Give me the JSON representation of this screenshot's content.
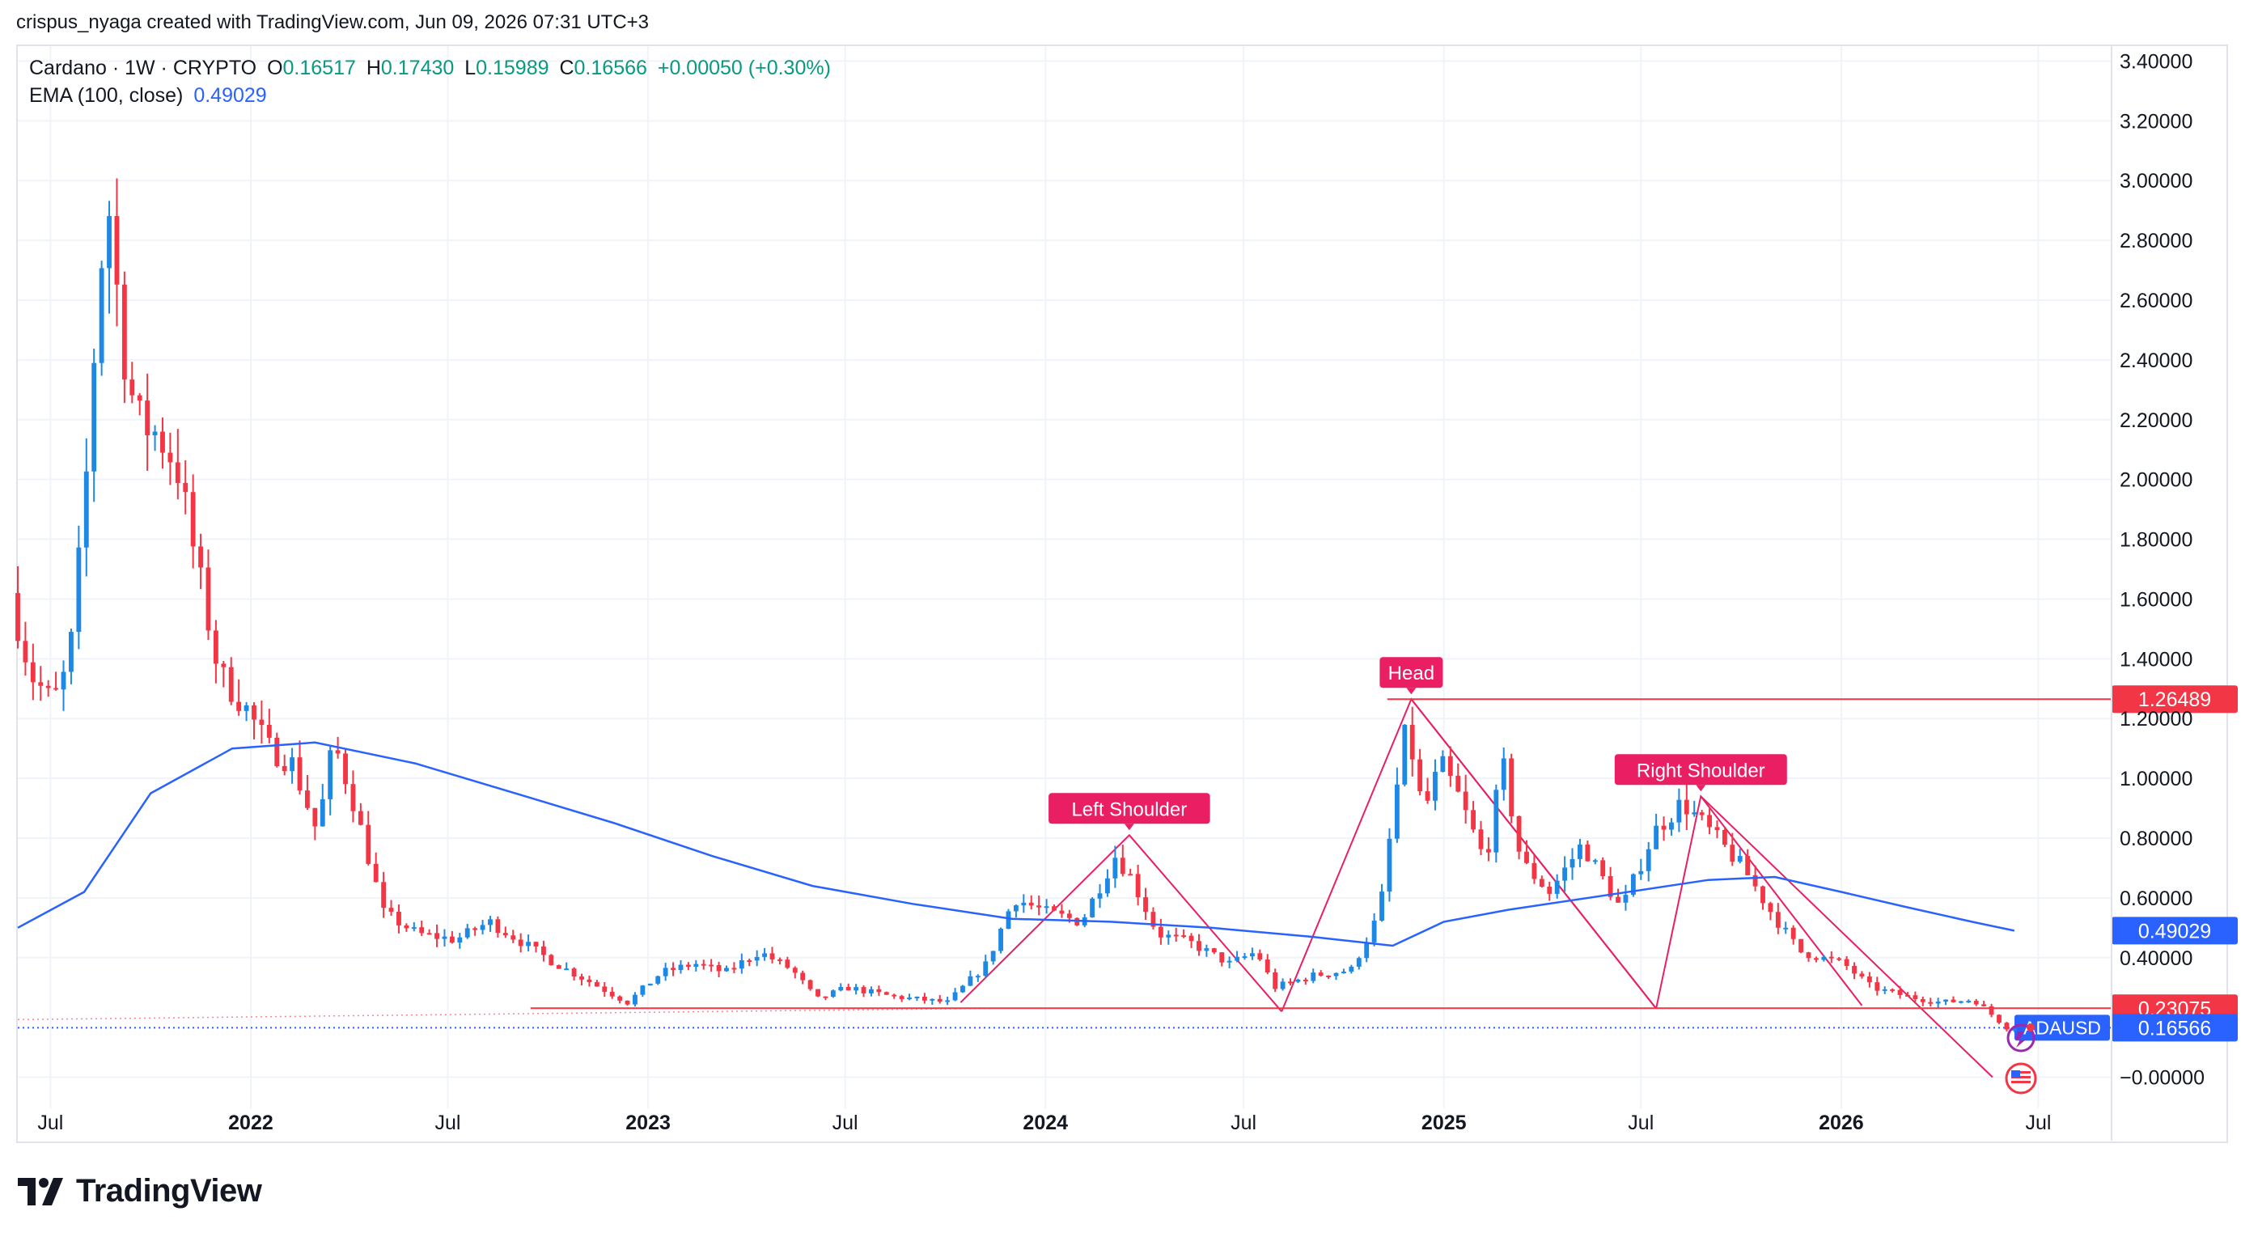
{
  "header": {
    "credit": "crispus_nyaga created with TradingView.com, Jun 09, 2026 07:31 UTC+3"
  },
  "legend": {
    "symbol": "Cardano · 1W · CRYPTO",
    "o_label": "O",
    "o_value": "0.16517",
    "h_label": "H",
    "h_value": "0.17430",
    "l_label": "L",
    "l_value": "0.15989",
    "c_label": "C",
    "c_value": "0.16566",
    "change": "+0.00050 (+0.30%)",
    "ema_label": "EMA (100, close)",
    "ema_value": "0.49029"
  },
  "colors": {
    "up": "#2962ff",
    "up_candle": "#1e88e5",
    "down": "#f23645",
    "ema": "#2962ff",
    "pattern": "#e91e63",
    "grid": "#f0f3fa",
    "legend_value": "#089981"
  },
  "brand": {
    "name": "TradingView",
    "icon": "tradingview-logo-icon"
  },
  "chart_data": {
    "type": "candlestick",
    "symbol": "ADAUSD",
    "ylim": [
      -0.05,
      3.45
    ],
    "y_ticks": [
      "3.40000",
      "3.20000",
      "3.00000",
      "2.80000",
      "2.60000",
      "2.40000",
      "2.20000",
      "2.00000",
      "1.80000",
      "1.60000",
      "1.40000",
      "1.20000",
      "1.00000",
      "0.80000",
      "0.60000",
      "0.40000",
      "−0.00000"
    ],
    "y_tick_values": [
      3.4,
      3.2,
      3.0,
      2.8,
      2.6,
      2.4,
      2.2,
      2.0,
      1.8,
      1.6,
      1.4,
      1.2,
      1.0,
      0.8,
      0.6,
      0.4,
      0.0
    ],
    "x_ticks": [
      {
        "label": "Jul",
        "date": "2021-07-01",
        "bold": false
      },
      {
        "label": "2022",
        "date": "2022-01-01",
        "bold": true
      },
      {
        "label": "Jul",
        "date": "2022-07-01",
        "bold": false
      },
      {
        "label": "2023",
        "date": "2023-01-01",
        "bold": true
      },
      {
        "label": "Jul",
        "date": "2023-07-01",
        "bold": false
      },
      {
        "label": "2024",
        "date": "2024-01-01",
        "bold": true
      },
      {
        "label": "Jul",
        "date": "2024-07-01",
        "bold": false
      },
      {
        "label": "2025",
        "date": "2025-01-01",
        "bold": true
      },
      {
        "label": "Jul",
        "date": "2025-07-01",
        "bold": false
      },
      {
        "label": "2026",
        "date": "2026-01-01",
        "bold": true
      },
      {
        "label": "Jul",
        "date": "2026-07-01",
        "bold": false
      }
    ],
    "x_range": [
      "2021-06-01",
      "2026-07-20"
    ],
    "price_path": [
      [
        "2021-06-01",
        1.62
      ],
      [
        "2021-06-20",
        1.35
      ],
      [
        "2021-07-10",
        1.25
      ],
      [
        "2021-07-25",
        1.38
      ],
      [
        "2021-08-08",
        1.9
      ],
      [
        "2021-08-22",
        2.7
      ],
      [
        "2021-09-01",
        2.92
      ],
      [
        "2021-09-10",
        2.5
      ],
      [
        "2021-09-25",
        2.2
      ],
      [
        "2021-10-15",
        2.15
      ],
      [
        "2021-11-01",
        2.05
      ],
      [
        "2021-11-20",
        1.7
      ],
      [
        "2021-12-10",
        1.35
      ],
      [
        "2022-01-01",
        1.25
      ],
      [
        "2022-01-25",
        1.1
      ],
      [
        "2022-02-15",
        1.05
      ],
      [
        "2022-03-10",
        0.82
      ],
      [
        "2022-03-25",
        1.12
      ],
      [
        "2022-04-10",
        0.95
      ],
      [
        "2022-05-10",
        0.55
      ],
      [
        "2022-06-10",
        0.48
      ],
      [
        "2022-07-15",
        0.46
      ],
      [
        "2022-08-15",
        0.52
      ],
      [
        "2022-09-15",
        0.45
      ],
      [
        "2022-10-15",
        0.38
      ],
      [
        "2022-11-15",
        0.32
      ],
      [
        "2022-12-20",
        0.25
      ],
      [
        "2023-01-20",
        0.35
      ],
      [
        "2023-02-20",
        0.38
      ],
      [
        "2023-03-20",
        0.35
      ],
      [
        "2023-04-20",
        0.42
      ],
      [
        "2023-05-20",
        0.36
      ],
      [
        "2023-06-12",
        0.26
      ],
      [
        "2023-07-10",
        0.3
      ],
      [
        "2023-08-20",
        0.27
      ],
      [
        "2023-10-10",
        0.25
      ],
      [
        "2023-11-15",
        0.38
      ],
      [
        "2023-12-10",
        0.6
      ],
      [
        "2024-01-10",
        0.55
      ],
      [
        "2024-02-10",
        0.52
      ],
      [
        "2024-03-12",
        0.74
      ],
      [
        "2024-03-25",
        0.68
      ],
      [
        "2024-04-20",
        0.48
      ],
      [
        "2024-05-20",
        0.45
      ],
      [
        "2024-06-25",
        0.38
      ],
      [
        "2024-07-20",
        0.42
      ],
      [
        "2024-08-05",
        0.3
      ],
      [
        "2024-09-10",
        0.34
      ],
      [
        "2024-10-15",
        0.36
      ],
      [
        "2024-11-10",
        0.55
      ],
      [
        "2024-11-25",
        0.95
      ],
      [
        "2024-12-05",
        1.18
      ],
      [
        "2024-12-20",
        0.88
      ],
      [
        "2025-01-05",
        1.05
      ],
      [
        "2025-01-20",
        0.95
      ],
      [
        "2025-02-15",
        0.72
      ],
      [
        "2025-03-03",
        1.05
      ],
      [
        "2025-03-20",
        0.72
      ],
      [
        "2025-04-15",
        0.62
      ],
      [
        "2025-05-15",
        0.78
      ],
      [
        "2025-06-20",
        0.56
      ],
      [
        "2025-07-20",
        0.82
      ],
      [
        "2025-08-15",
        0.92
      ],
      [
        "2025-09-10",
        0.82
      ],
      [
        "2025-10-10",
        0.7
      ],
      [
        "2025-11-05",
        0.55
      ],
      [
        "2025-12-01",
        0.42
      ],
      [
        "2026-01-10",
        0.38
      ],
      [
        "2026-02-05",
        0.3
      ],
      [
        "2026-03-10",
        0.27
      ],
      [
        "2026-04-10",
        0.25
      ],
      [
        "2026-05-10",
        0.26
      ],
      [
        "2026-06-09",
        0.16566
      ]
    ],
    "ema_path": [
      [
        "2021-06-01",
        0.5
      ],
      [
        "2021-08-01",
        0.62
      ],
      [
        "2021-10-01",
        0.95
      ],
      [
        "2021-12-15",
        1.1
      ],
      [
        "2022-03-01",
        1.12
      ],
      [
        "2022-06-01",
        1.05
      ],
      [
        "2022-09-01",
        0.95
      ],
      [
        "2022-12-01",
        0.85
      ],
      [
        "2023-03-01",
        0.74
      ],
      [
        "2023-06-01",
        0.64
      ],
      [
        "2023-09-01",
        0.58
      ],
      [
        "2023-12-01",
        0.53
      ],
      [
        "2024-03-01",
        0.52
      ],
      [
        "2024-06-01",
        0.5
      ],
      [
        "2024-09-01",
        0.47
      ],
      [
        "2024-11-15",
        0.44
      ],
      [
        "2025-01-01",
        0.52
      ],
      [
        "2025-03-01",
        0.56
      ],
      [
        "2025-06-01",
        0.61
      ],
      [
        "2025-09-01",
        0.66
      ],
      [
        "2025-11-01",
        0.67
      ],
      [
        "2026-01-01",
        0.62
      ],
      [
        "2026-03-01",
        0.57
      ],
      [
        "2026-05-01",
        0.52
      ],
      [
        "2026-06-09",
        0.49029
      ]
    ],
    "annotations": [
      {
        "text": "Left Shoulder",
        "date": "2024-03-18",
        "price": 0.81
      },
      {
        "text": "Head",
        "date": "2024-12-02",
        "price": 1.26489
      },
      {
        "text": "Right Shoulder",
        "date": "2025-08-25",
        "price": 0.94
      }
    ],
    "pattern_lines": [
      [
        [
          "2023-10-15",
          0.25
        ],
        [
          "2024-03-18",
          0.81
        ],
        [
          "2024-08-05",
          0.22
        ]
      ],
      [
        [
          "2024-08-05",
          0.22
        ],
        [
          "2024-12-02",
          1.26489
        ],
        [
          "2025-07-15",
          0.23
        ]
      ],
      [
        [
          "2025-07-15",
          0.23
        ],
        [
          "2025-08-25",
          0.94
        ],
        [
          "2026-01-20",
          0.24
        ]
      ],
      [
        [
          "2024-12-02",
          1.26489
        ],
        [
          "2025-07-15",
          0.23
        ]
      ],
      [
        [
          "2025-08-25",
          0.94
        ],
        [
          "2026-05-20",
          0.0
        ]
      ]
    ],
    "levels": [
      {
        "value": 1.26489,
        "label": "1.26489",
        "start": "2024-11-10",
        "style": "solid"
      },
      {
        "value": 0.23075,
        "label": "0.23075",
        "start": "2022-09-15",
        "style": "solid"
      },
      {
        "value": 0.16566,
        "label": "0.16566",
        "tag": "ADAUSD",
        "start": "2021-06-01",
        "style": "dotted"
      },
      {
        "value": 0.49029,
        "label": "0.49029",
        "style": "none"
      }
    ]
  }
}
